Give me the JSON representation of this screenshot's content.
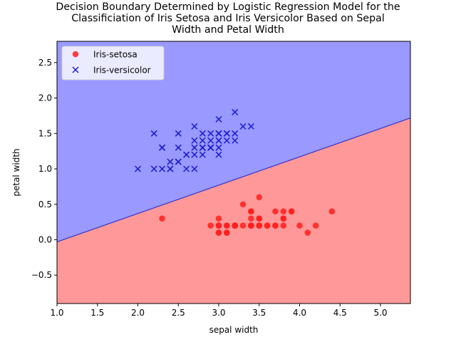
{
  "chart_data": {
    "type": "scatter",
    "title_lines": [
      "Decision Boundary Determined by Logistic Regression Model for the",
      "Classificiation of Iris Setosa and Iris Versicolor Based on Sepal",
      "Width and Petal Width"
    ],
    "xlabel": "sepal width",
    "ylabel": "petal width",
    "xlim": [
      1.0,
      5.37
    ],
    "ylim": [
      -0.9,
      2.8
    ],
    "x_ticks": [
      1.0,
      1.5,
      2.0,
      2.5,
      3.0,
      3.5,
      4.0,
      4.5,
      5.0
    ],
    "x_tick_labels": [
      "1.0",
      "1.5",
      "2.0",
      "2.5",
      "3.0",
      "3.5",
      "4.0",
      "4.5",
      "5.0"
    ],
    "y_ticks": [
      -0.5,
      0.0,
      0.5,
      1.0,
      1.5,
      2.0,
      2.5
    ],
    "y_tick_labels": [
      "−0.5",
      "0.0",
      "0.5",
      "1.0",
      "1.5",
      "2.0",
      "2.5"
    ],
    "grid": false,
    "legend_position": "top-left",
    "decision_boundary": {
      "intercept": -0.43,
      "slope": 0.4
    },
    "region_colors": {
      "upper": "#9999ff",
      "lower": "#ff9999",
      "boundary": "#3333cc"
    },
    "series": [
      {
        "name": "Iris-setosa",
        "marker": "circle",
        "color": "#ff2020",
        "points": [
          [
            3.5,
            0.2
          ],
          [
            3.0,
            0.2
          ],
          [
            3.2,
            0.2
          ],
          [
            3.1,
            0.2
          ],
          [
            3.6,
            0.2
          ],
          [
            3.9,
            0.4
          ],
          [
            3.4,
            0.3
          ],
          [
            3.4,
            0.2
          ],
          [
            2.9,
            0.2
          ],
          [
            3.1,
            0.1
          ],
          [
            3.7,
            0.2
          ],
          [
            3.4,
            0.2
          ],
          [
            3.0,
            0.1
          ],
          [
            3.0,
            0.1
          ],
          [
            4.0,
            0.2
          ],
          [
            4.4,
            0.4
          ],
          [
            3.9,
            0.4
          ],
          [
            3.5,
            0.3
          ],
          [
            3.8,
            0.3
          ],
          [
            3.8,
            0.3
          ],
          [
            3.4,
            0.2
          ],
          [
            3.7,
            0.4
          ],
          [
            3.6,
            0.2
          ],
          [
            3.3,
            0.5
          ],
          [
            3.4,
            0.2
          ],
          [
            3.0,
            0.2
          ],
          [
            3.4,
            0.4
          ],
          [
            3.5,
            0.2
          ],
          [
            3.4,
            0.2
          ],
          [
            3.2,
            0.2
          ],
          [
            3.1,
            0.2
          ],
          [
            3.4,
            0.4
          ],
          [
            4.1,
            0.1
          ],
          [
            4.2,
            0.2
          ],
          [
            3.1,
            0.1
          ],
          [
            3.2,
            0.2
          ],
          [
            3.5,
            0.2
          ],
          [
            3.1,
            0.1
          ],
          [
            3.0,
            0.2
          ],
          [
            3.4,
            0.2
          ],
          [
            3.5,
            0.3
          ],
          [
            2.3,
            0.3
          ],
          [
            3.2,
            0.2
          ],
          [
            3.5,
            0.6
          ],
          [
            3.8,
            0.4
          ],
          [
            3.0,
            0.3
          ],
          [
            3.8,
            0.2
          ],
          [
            3.2,
            0.2
          ],
          [
            3.7,
            0.2
          ],
          [
            3.3,
            0.2
          ]
        ]
      },
      {
        "name": "Iris-versicolor",
        "marker": "x",
        "color": "#1a1ad0",
        "points": [
          [
            3.2,
            1.4
          ],
          [
            3.2,
            1.5
          ],
          [
            3.1,
            1.5
          ],
          [
            2.3,
            1.3
          ],
          [
            2.8,
            1.5
          ],
          [
            2.8,
            1.3
          ],
          [
            3.3,
            1.6
          ],
          [
            2.4,
            1.0
          ],
          [
            2.9,
            1.3
          ],
          [
            2.7,
            1.4
          ],
          [
            2.0,
            1.0
          ],
          [
            3.0,
            1.5
          ],
          [
            2.2,
            1.0
          ],
          [
            2.9,
            1.4
          ],
          [
            2.9,
            1.3
          ],
          [
            3.1,
            1.4
          ],
          [
            3.0,
            1.5
          ],
          [
            2.7,
            1.0
          ],
          [
            2.2,
            1.5
          ],
          [
            2.5,
            1.1
          ],
          [
            3.2,
            1.8
          ],
          [
            2.8,
            1.3
          ],
          [
            2.5,
            1.5
          ],
          [
            2.8,
            1.2
          ],
          [
            2.9,
            1.3
          ],
          [
            3.0,
            1.4
          ],
          [
            2.8,
            1.4
          ],
          [
            3.0,
            1.7
          ],
          [
            2.9,
            1.5
          ],
          [
            2.6,
            1.0
          ],
          [
            2.4,
            1.1
          ],
          [
            2.4,
            1.0
          ],
          [
            2.7,
            1.2
          ],
          [
            2.7,
            1.6
          ],
          [
            3.0,
            1.5
          ],
          [
            3.4,
            1.6
          ],
          [
            3.1,
            1.5
          ],
          [
            2.3,
            1.3
          ],
          [
            3.0,
            1.3
          ],
          [
            2.5,
            1.3
          ],
          [
            2.6,
            1.2
          ],
          [
            3.0,
            1.4
          ],
          [
            2.6,
            1.2
          ],
          [
            2.3,
            1.0
          ],
          [
            2.7,
            1.3
          ],
          [
            3.0,
            1.2
          ],
          [
            2.9,
            1.3
          ],
          [
            2.9,
            1.3
          ],
          [
            2.5,
            1.1
          ],
          [
            2.8,
            1.3
          ]
        ]
      }
    ]
  }
}
